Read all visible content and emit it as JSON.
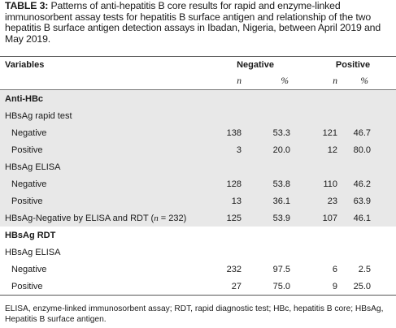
{
  "caption": {
    "label": "TABLE 3:",
    "text": " Patterns of anti-hepatitis B core results for rapid and enzyme-linked immunosorbent assay tests for hepatitis B surface antigen and relationship of the two hepatitis B surface antigen detection assays in Ibadan, Nigeria, between April 2019 and May 2019."
  },
  "table": {
    "headers": {
      "variables": "Variables",
      "negative": "Negative",
      "positive": "Positive",
      "n": "n",
      "pct": "%"
    },
    "rows": [
      {
        "label": "Anti-HBc",
        "type": "section",
        "n1": "",
        "p1": "",
        "n2": "",
        "p2": ""
      },
      {
        "label": "HBsAg rapid test",
        "type": "group",
        "n1": "",
        "p1": "",
        "n2": "",
        "p2": ""
      },
      {
        "label": "Negative",
        "type": "item",
        "n1": "138",
        "p1": "53.3",
        "n2": "121",
        "p2": "46.7"
      },
      {
        "label": "Positive",
        "type": "item",
        "n1": "3",
        "p1": "20.0",
        "n2": "12",
        "p2": "80.0"
      },
      {
        "label": "HBsAg ELISA",
        "type": "group",
        "n1": "",
        "p1": "",
        "n2": "",
        "p2": ""
      },
      {
        "label": "Negative",
        "type": "item",
        "n1": "128",
        "p1": "53.8",
        "n2": "110",
        "p2": "46.2"
      },
      {
        "label": "Positive",
        "type": "item",
        "n1": "13",
        "p1": "36.1",
        "n2": "23",
        "p2": "63.9"
      },
      {
        "label_pre": "HBsAg-Negative by ELISA and RDT (",
        "label_n": "n",
        "label_post": " = 232)",
        "type": "group-n",
        "n1": "125",
        "p1": "53.9",
        "n2": "107",
        "p2": "46.1"
      },
      {
        "label": "HBsAg RDT",
        "type": "section",
        "n1": "",
        "p1": "",
        "n2": "",
        "p2": ""
      },
      {
        "label": "HBsAg ELISA",
        "type": "group",
        "n1": "",
        "p1": "",
        "n2": "",
        "p2": ""
      },
      {
        "label": "Negative",
        "type": "item",
        "n1": "232",
        "p1": "97.5",
        "n2": "6",
        "p2": "2.5"
      },
      {
        "label": "Positive",
        "type": "item",
        "n1": "27",
        "p1": "75.0",
        "n2": "9",
        "p2": "25.0"
      }
    ]
  },
  "footnote": "ELISA, enzyme-linked immunosorbent assay; RDT, rapid diagnostic test; HBc, hepatitis B core; HBsAg, Hepatitis B surface antigen."
}
